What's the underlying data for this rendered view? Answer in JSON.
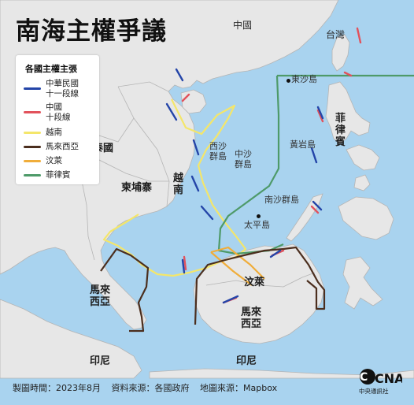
{
  "title": "南海主權爭議",
  "legend": {
    "title": "各國主權主張",
    "items": [
      {
        "label": "中華民國\n十一段線",
        "color": "#2445a8"
      },
      {
        "label": "中國\n十段線",
        "color": "#e2525c"
      },
      {
        "label": "越南",
        "color": "#f4e66a"
      },
      {
        "label": "馬來西亞",
        "color": "#4b2e1e"
      },
      {
        "label": "汶萊",
        "color": "#f0ad3a"
      },
      {
        "label": "菲律賓",
        "color": "#4e9a69"
      }
    ]
  },
  "places": {
    "china": "中國",
    "taiwan": "台灣",
    "dongsha": "東沙島",
    "philippines": "菲\n律\n賓",
    "huangyan": "黃岩島",
    "xisha": "西沙\n群島",
    "zhongsha": "中沙\n群島",
    "nansha": "南沙群島",
    "taiping": "太平島",
    "thailand": "泰國",
    "cambodia": "柬埔寨",
    "vietnam": "越\n南",
    "brunei": "汶萊",
    "malaysia_west": "馬來\n西亞",
    "malaysia_east": "馬來\n西亞",
    "indonesia_west": "印尼",
    "indonesia_east": "印尼"
  },
  "footer": {
    "date": "製圖時間：2023年8月",
    "source": "資料來源：各國政府",
    "map_source": "地圖來源：Mapbox"
  },
  "logo": {
    "text": "CNA",
    "subtitle": "中央通訊社"
  },
  "colors": {
    "sea": "#a9d3ef",
    "land": "#e7e7e7",
    "border": "#b5b5b5"
  }
}
